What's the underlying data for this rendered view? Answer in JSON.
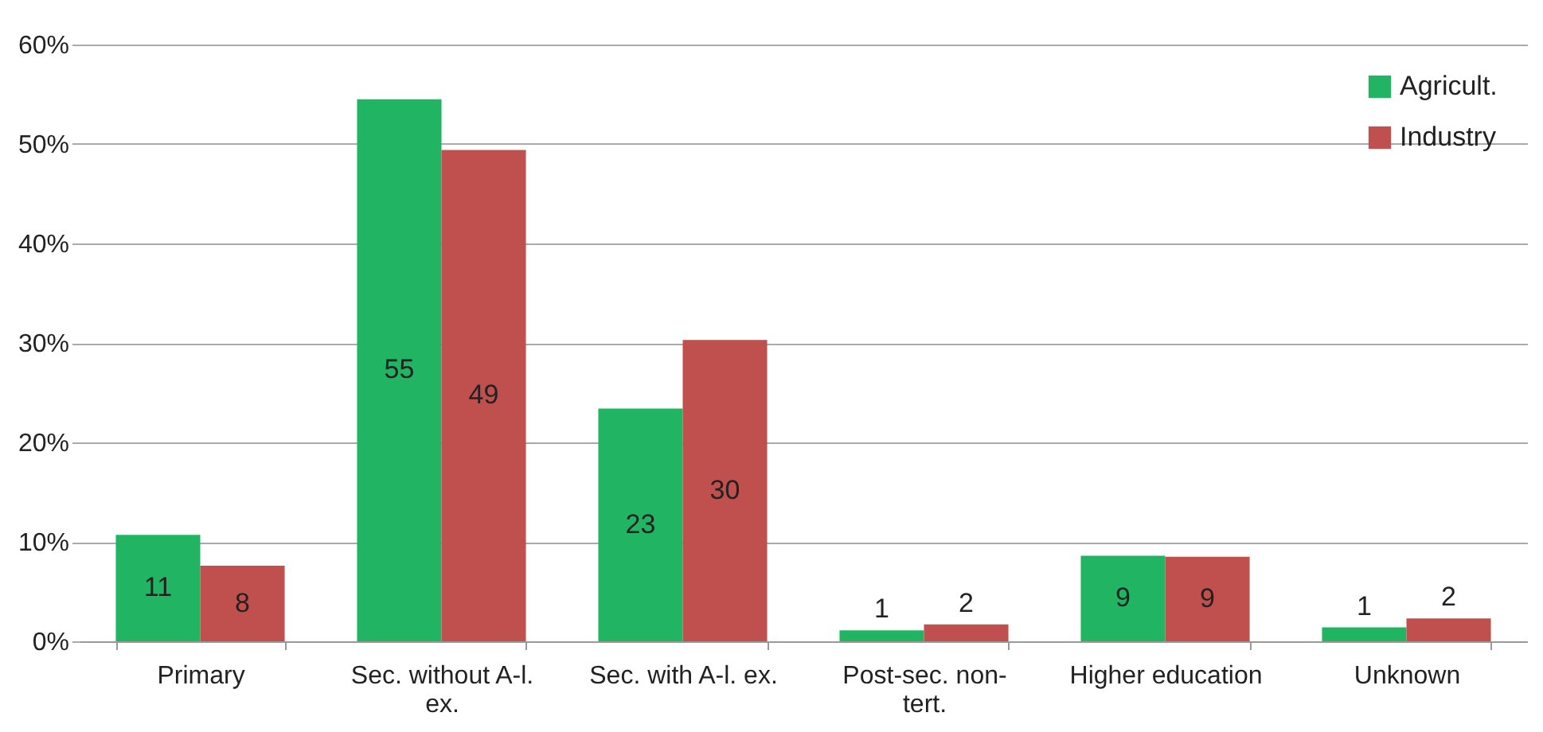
{
  "chart_data": {
    "type": "bar",
    "categories": [
      "Primary",
      "Sec. without A-l. ex.",
      "Sec. with A-l. ex.",
      "Post-sec. non-tert.",
      "Higher education",
      "Unknown"
    ],
    "series": [
      {
        "name": "Agricult.",
        "color": "#21b462",
        "values": [
          10.7,
          54.5,
          23.4,
          1.1,
          8.6,
          1.4
        ],
        "value_labels": [
          "11",
          "55",
          "23",
          "1",
          "9",
          "1"
        ]
      },
      {
        "name": "Industry",
        "color": "#c0504d",
        "values": [
          7.6,
          49.4,
          30.3,
          1.7,
          8.5,
          2.3
        ],
        "value_labels": [
          "8",
          "49",
          "30",
          "2",
          "9",
          "2"
        ]
      }
    ],
    "ylim": [
      0,
      60
    ],
    "yticks": [
      {
        "value": 0,
        "label": "0%"
      },
      {
        "value": 10,
        "label": "10%"
      },
      {
        "value": 20,
        "label": "20%"
      },
      {
        "value": 30,
        "label": "30%"
      },
      {
        "value": 40,
        "label": "40%"
      },
      {
        "value": 50,
        "label": "50%"
      },
      {
        "value": 60,
        "label": "60%"
      }
    ],
    "grid": "y",
    "legend": "top right"
  }
}
